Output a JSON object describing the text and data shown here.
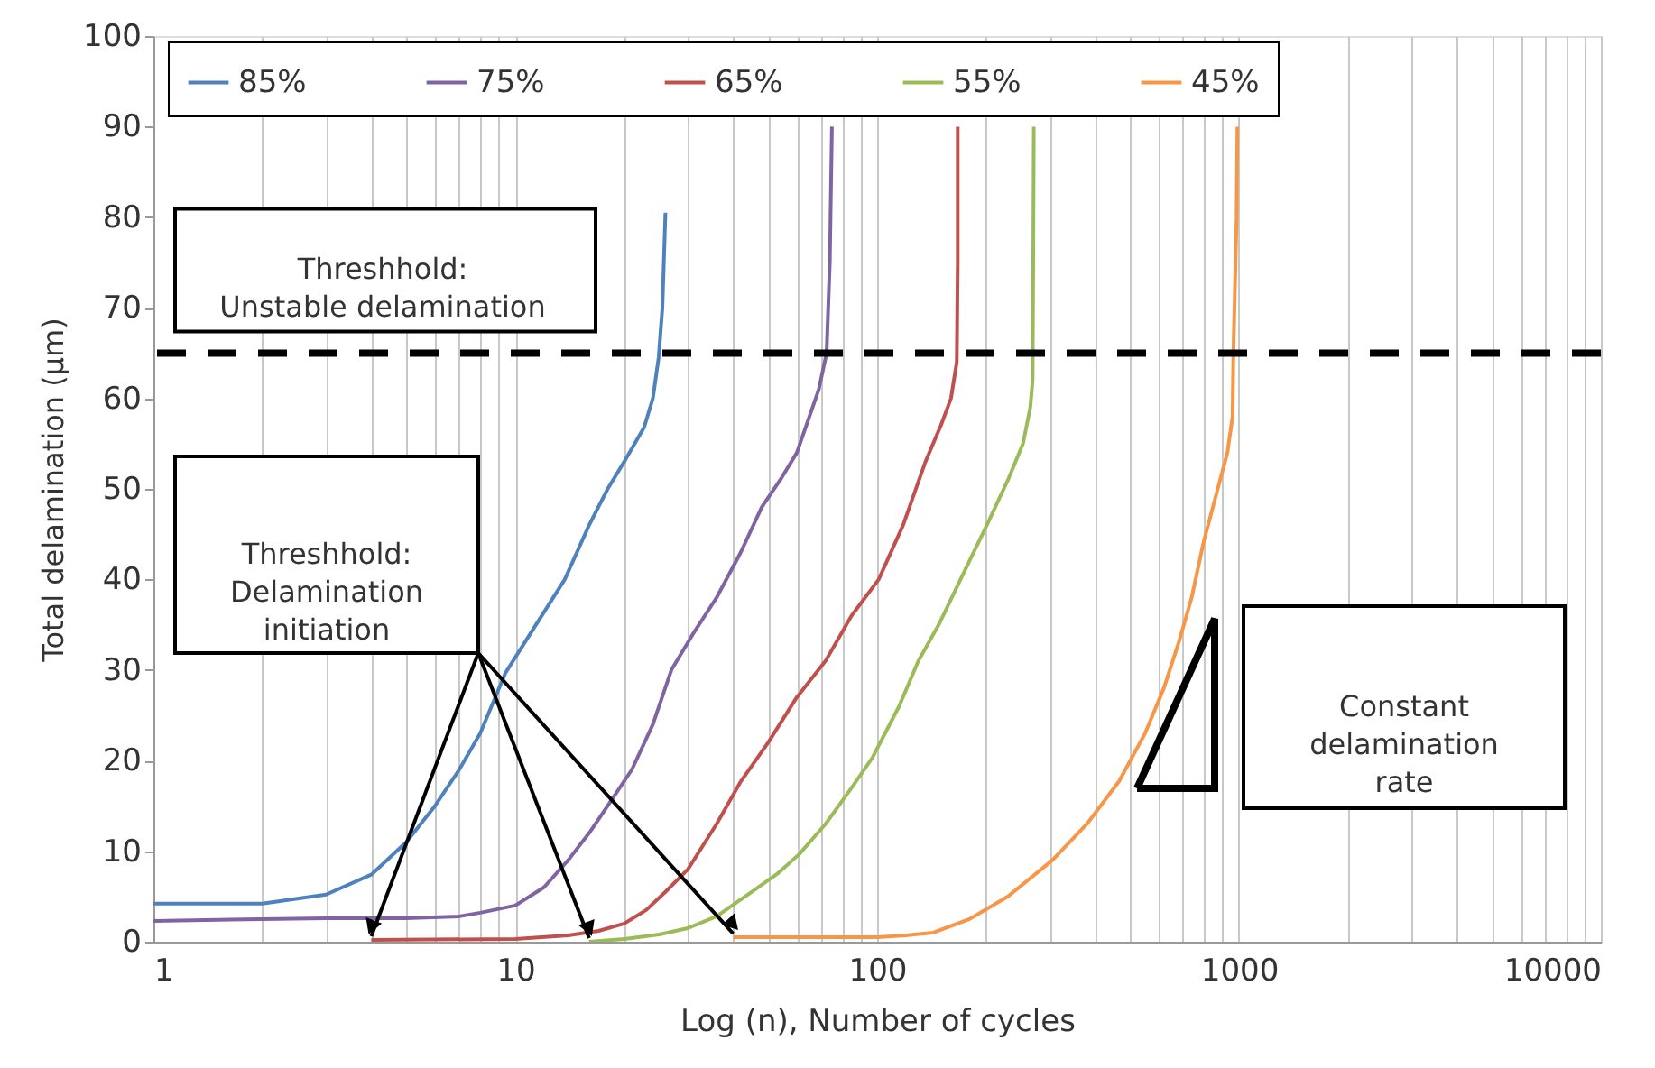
{
  "chart_data": {
    "type": "line",
    "xlabel": "Log (n), Number of cycles",
    "ylabel": "Total delamination (μm)",
    "log": "x",
    "xlim": [
      1,
      10000
    ],
    "ylim": [
      0,
      100
    ],
    "xticks": [
      1,
      {
        "value": 2,
        "label": null
      },
      {
        "value": 3,
        "label": null
      },
      {
        "value": 4,
        "label": null
      },
      {
        "value": 5,
        "label": null
      },
      {
        "value": 6,
        "label": null
      },
      {
        "value": 7,
        "label": null
      },
      {
        "value": 8,
        "label": null
      },
      {
        "value": 9,
        "label": null
      },
      10,
      {
        "value": 20,
        "label": null
      },
      {
        "value": 30,
        "label": null
      },
      {
        "value": 40,
        "label": null
      },
      {
        "value": 50,
        "label": null
      },
      {
        "value": 60,
        "label": null
      },
      {
        "value": 70,
        "label": null
      },
      {
        "value": 80,
        "label": null
      },
      {
        "value": 90,
        "label": null
      },
      100,
      {
        "value": 200,
        "label": null
      },
      {
        "value": 300,
        "label": null
      },
      {
        "value": 400,
        "label": null
      },
      {
        "value": 500,
        "label": null
      },
      {
        "value": 600,
        "label": null
      },
      {
        "value": 700,
        "label": null
      },
      {
        "value": 800,
        "label": null
      },
      {
        "value": 900,
        "label": null
      },
      1000,
      {
        "value": 2000,
        "label": null
      },
      {
        "value": 3000,
        "label": null
      },
      {
        "value": 4000,
        "label": null
      },
      {
        "value": 5000,
        "label": null
      },
      {
        "value": 6000,
        "label": null
      },
      {
        "value": 7000,
        "label": null
      },
      {
        "value": 8000,
        "label": null
      },
      {
        "value": 9000,
        "label": null
      },
      10000
    ],
    "yticks": [
      0,
      10,
      20,
      30,
      40,
      50,
      60,
      70,
      80,
      90,
      100
    ],
    "grid": "x",
    "legend": "top",
    "marker": "none",
    "line_style": "solid",
    "series": [
      {
        "name": "85%",
        "color": "#4f81bd",
        "x": [
          1,
          2,
          3,
          4,
          5,
          6,
          7,
          8,
          9.4,
          11,
          13.7,
          16,
          18,
          20,
          22.7,
          24,
          24.9,
          25.5,
          26
        ],
        "values": [
          4.2,
          4.2,
          5.2,
          7.4,
          11,
          15,
          19,
          23,
          29.7,
          34,
          40,
          46,
          50,
          53,
          56.8,
          60,
          64.5,
          70,
          80.5
        ]
      },
      {
        "name": "75%",
        "color": "#8064a2",
        "x": [
          1,
          3,
          5,
          7,
          8,
          10,
          12,
          14,
          16,
          18,
          21,
          24,
          27,
          31,
          36,
          42,
          48,
          54,
          60,
          65,
          69,
          72.5,
          74,
          75
        ],
        "values": [
          2.3,
          2.6,
          2.6,
          2.8,
          3.2,
          4,
          6,
          9,
          12,
          15,
          19,
          24,
          30,
          34,
          38,
          43,
          48,
          51,
          54,
          58,
          61,
          65,
          75,
          90
        ]
      },
      {
        "name": "65%",
        "color": "#c0504d",
        "x": [
          4,
          10,
          14,
          17,
          20,
          23,
          26,
          30,
          36,
          42,
          50,
          60,
          72,
          85,
          101,
          118,
          136,
          150,
          160,
          166,
          167,
          167
        ],
        "values": [
          0.2,
          0.3,
          0.7,
          1.2,
          2,
          3.5,
          5.5,
          8,
          13,
          17.7,
          22,
          27,
          31,
          36,
          40,
          46,
          53,
          57,
          60,
          64,
          75,
          90
        ]
      },
      {
        "name": "55%",
        "color": "#9bbb59",
        "x": [
          16,
          20,
          25,
          30,
          36,
          45,
          53,
          61,
          72,
          85,
          97,
          115,
          130,
          148,
          170,
          201,
          230,
          253,
          265,
          269,
          270,
          271
        ],
        "values": [
          0,
          0.3,
          0.8,
          1.5,
          2.8,
          5.5,
          7.5,
          9.7,
          13,
          17,
          20.3,
          26,
          31,
          35,
          40,
          46,
          51,
          55,
          59,
          62,
          75,
          90
        ]
      },
      {
        "name": "45%",
        "color": "#f79646",
        "x": [
          40,
          100,
          120,
          143,
          180,
          230,
          305,
          380,
          466,
          550,
          620,
          681,
          740,
          797,
          860,
          929,
          960,
          965,
          985,
          990
        ],
        "values": [
          0.5,
          0.5,
          0.7,
          1,
          2.5,
          5,
          9,
          13,
          17.7,
          23,
          28,
          33,
          38,
          44,
          49,
          54,
          58,
          65,
          80,
          90
        ]
      }
    ],
    "ref_lines": [
      {
        "axis": "y",
        "value": 65,
        "label": "Threshhold:\nUnstable delamination",
        "color": "#000000",
        "line_style": "dashed"
      }
    ],
    "annotations": [
      "Threshhold:\nDelamination\ninitiation",
      "Constant\ndelamination\nrate"
    ]
  }
}
